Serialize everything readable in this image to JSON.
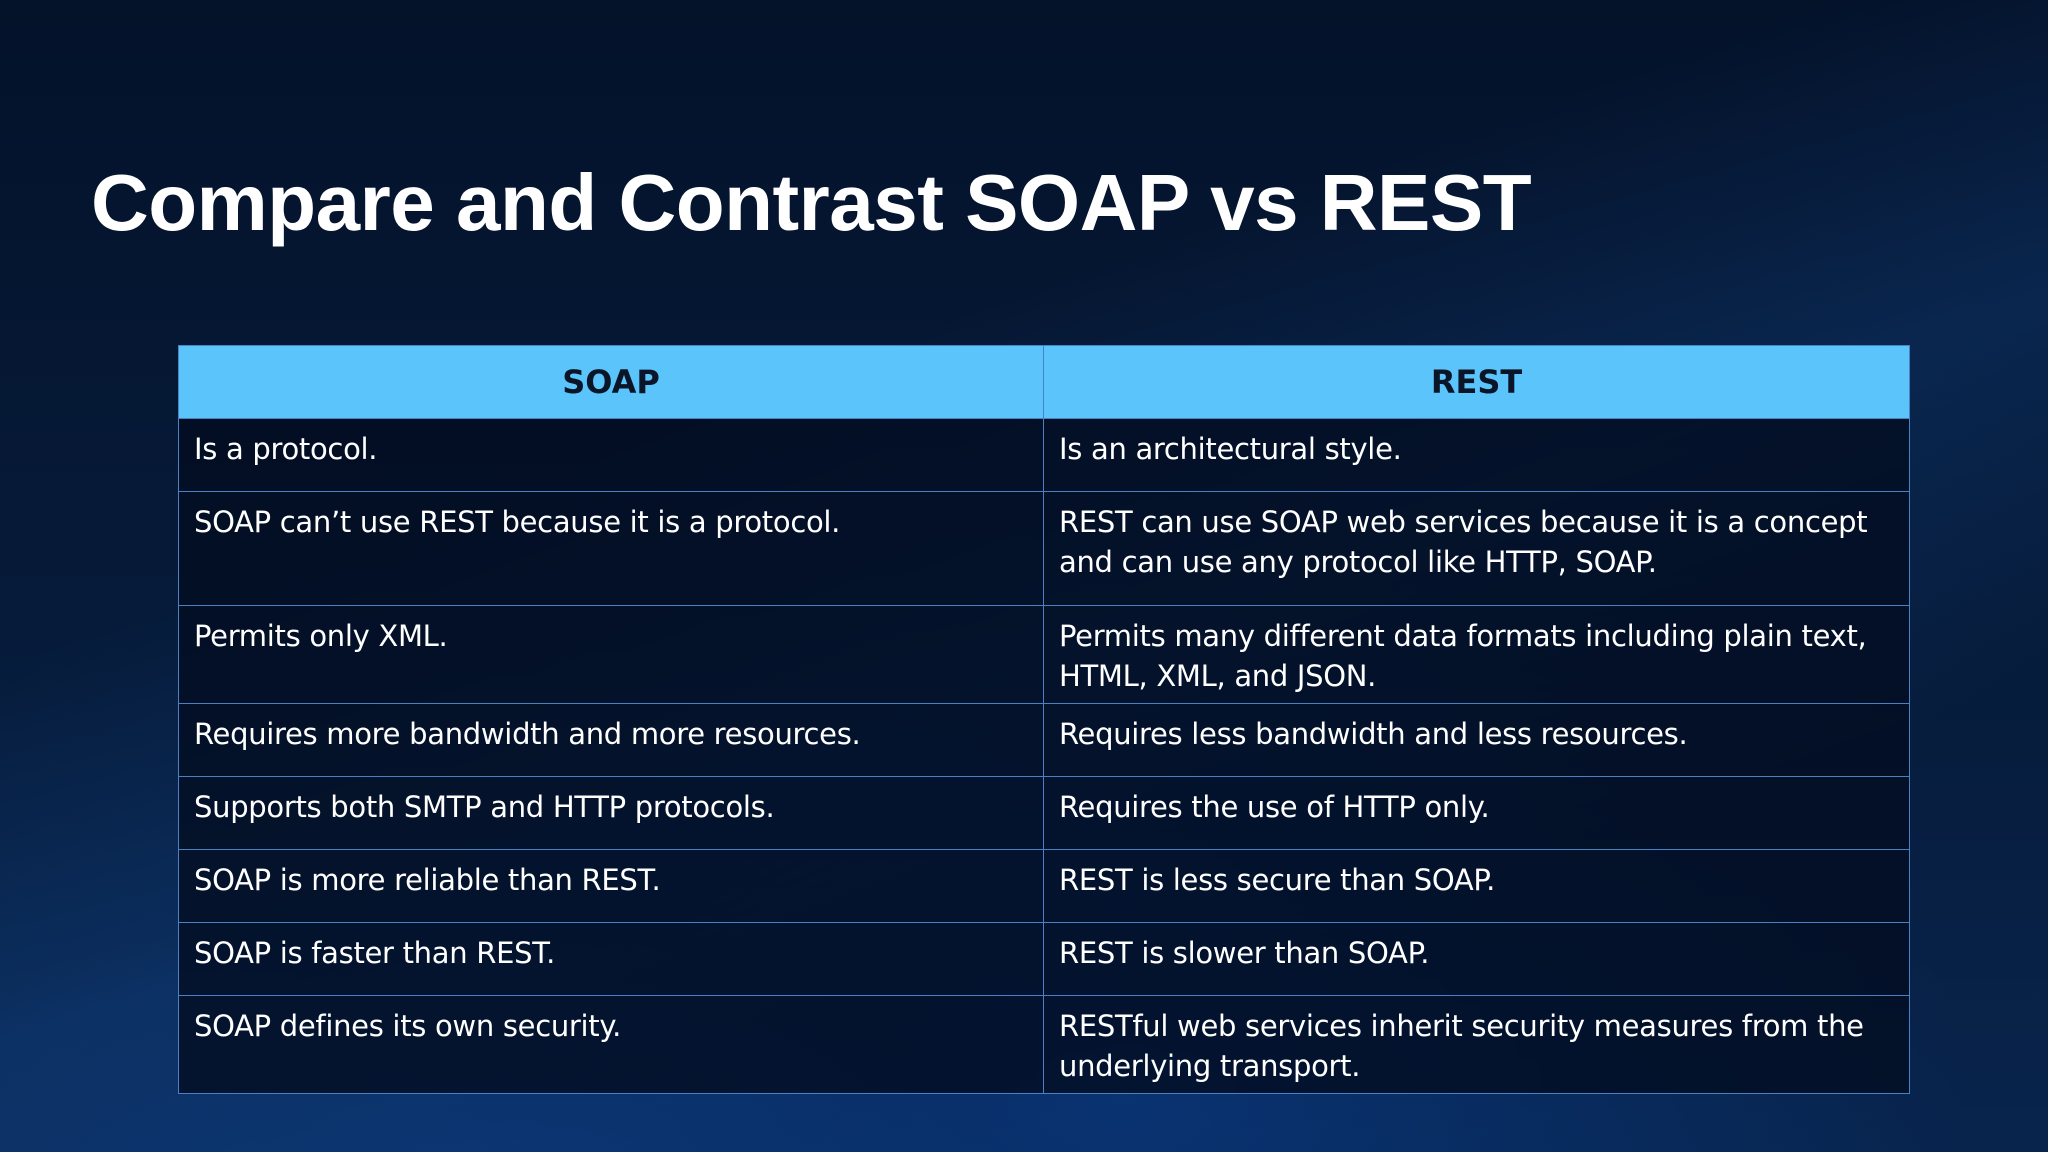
{
  "slide": {
    "title": "Compare and Contrast SOAP vs REST"
  },
  "table": {
    "headers": [
      "SOAP",
      "REST"
    ],
    "rows": [
      [
        "Is a protocol.",
        "Is an architectural style."
      ],
      [
        "SOAP can’t use REST because it is a protocol.",
        "REST can use SOAP web services because it is a concept and can use any protocol like HTTP, SOAP."
      ],
      [
        "Permits only XML.",
        "Permits many different data formats including plain text, HTML, XML, and JSON."
      ],
      [
        "Requires more bandwidth and more resources.",
        "Requires less bandwidth and less resources."
      ],
      [
        "Supports both SMTP and HTTP protocols.",
        "Requires the use of HTTP only."
      ],
      [
        "SOAP is more reliable than REST.",
        "REST is less secure than SOAP."
      ],
      [
        "SOAP is faster than REST.",
        "REST is slower than SOAP."
      ],
      [
        "SOAP defines its own security.",
        "RESTful web services inherit security measures from the underlying transport."
      ]
    ]
  },
  "colors": {
    "background": "#061a36",
    "header_fill": "#5ac4fb",
    "header_text": "#0a1628",
    "grid_lines": "#4a80c4",
    "text": "#ffffff"
  }
}
